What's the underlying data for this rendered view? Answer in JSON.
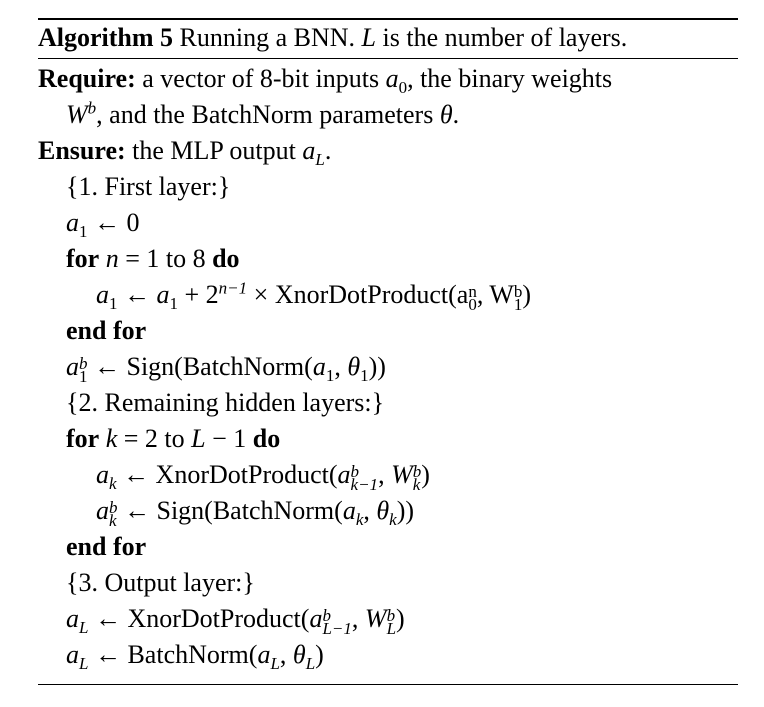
{
  "caption": {
    "label": "Algorithm 5",
    "text": "Running a BNN.",
    "var": "L",
    "rest": "is the number of layers."
  },
  "require": {
    "keyword": "Require:",
    "text1": "a vector of 8-bit inputs",
    "var1": "a",
    "sub1": "0",
    "text2": ", the binary weights",
    "var2": "W",
    "sup2": "b",
    "text3": ", and the BatchNorm parameters",
    "var3": "θ",
    "text4": "."
  },
  "ensure": {
    "keyword": "Ensure:",
    "text": "the MLP output",
    "var": "a",
    "sub": "L",
    "end": "."
  },
  "lines": {
    "c1": "{1. First layer:}",
    "l2_var": "a",
    "l2_sub": "1",
    "l2_rest": " ← 0",
    "for1_kw": "for",
    "for1_var": "n",
    "for1_mid": " = 1 to 8 ",
    "for1_do": "do",
    "l4_a": "a",
    "l4_sub": "1",
    "l4_arrow": " ← ",
    "l4_b": "a",
    "l4_sub2": "1",
    "l4_plus": " + 2",
    "l4_exp": "n−1",
    "l4_times": " × XnorDotProduct(a",
    "l4_sup_n": "n",
    "l4_sub_0": "0",
    "l4_comma": ", W",
    "l4_sup_b": "b",
    "l4_sub_1": "1",
    "l4_close": ")",
    "endfor1": "end for",
    "l6_a": "a",
    "l6_sup": "b",
    "l6_sub": "1",
    "l6_mid": " ← Sign(BatchNorm(",
    "l6_arg": "a",
    "l6_argsub": "1",
    "l6_comma": ", ",
    "l6_theta": "θ",
    "l6_thetasub": "1",
    "l6_close": "))",
    "c2": "{2. Remaining hidden layers:}",
    "for2_kw": "for",
    "for2_var": "k",
    "for2_mid": " = 2 to ",
    "for2_L": "L",
    "for2_tail": " − 1 ",
    "for2_do": "do",
    "l9_a": "a",
    "l9_sub": "k",
    "l9_mid": " ← XnorDotProduct(",
    "l9_arg": "a",
    "l9_sup": "b",
    "l9_argsub": "k−1",
    "l9_comma": ", ",
    "l9_W": "W",
    "l9_Wsup": "b",
    "l9_Wsub": "k",
    "l9_close": ")",
    "l10_a": "a",
    "l10_sup": "b",
    "l10_sub": "k",
    "l10_mid": " ← Sign(BatchNorm(",
    "l10_arg": "a",
    "l10_argsub": "k",
    "l10_comma": ", ",
    "l10_theta": "θ",
    "l10_thetasub": "k",
    "l10_close": "))",
    "endfor2": "end for",
    "c3": "{3. Output layer:}",
    "l13_a": "a",
    "l13_sub": "L",
    "l13_mid": " ← XnorDotProduct(",
    "l13_arg": "a",
    "l13_sup": "b",
    "l13_argsub": "L−1",
    "l13_comma": ", ",
    "l13_W": "W",
    "l13_Wsup": "b",
    "l13_Wsub": "L",
    "l13_close": ")",
    "l14_a": "a",
    "l14_sub": "L",
    "l14_mid": " ← BatchNorm(",
    "l14_arg": "a",
    "l14_argsub": "L",
    "l14_comma": ", ",
    "l14_theta": "θ",
    "l14_thetasub": "L",
    "l14_close": ")"
  }
}
